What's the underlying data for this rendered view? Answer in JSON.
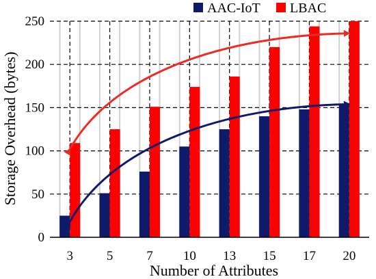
{
  "chart_data": {
    "type": "bar",
    "xlabel": "Number of Attributes",
    "ylabel": "Storage Overhead (bytes)",
    "categories": [
      "3",
      "5",
      "7",
      "10",
      "13",
      "15",
      "17",
      "20"
    ],
    "ylim": [
      0,
      250
    ],
    "yticks": [
      0,
      50,
      100,
      150,
      200,
      250
    ],
    "grid": true,
    "legend_position": "top",
    "series": [
      {
        "name": "AAC-IoT",
        "color": "#0f1a6b",
        "values": [
          25,
          51,
          76,
          105,
          125,
          140,
          148,
          153
        ]
      },
      {
        "name": "LBAC",
        "color": "#ff0000",
        "values": [
          109,
          125,
          151,
          174,
          186,
          220,
          244,
          250
        ]
      }
    ],
    "trend_arrows": [
      {
        "series": "AAC-IoT",
        "color": "#0f1a6b",
        "from": [
          "3",
          18
        ],
        "to": [
          "20",
          154
        ]
      },
      {
        "series": "LBAC",
        "color": "#ee2a24",
        "from": [
          "3",
          102
        ],
        "to": [
          "20",
          236
        ]
      }
    ]
  }
}
